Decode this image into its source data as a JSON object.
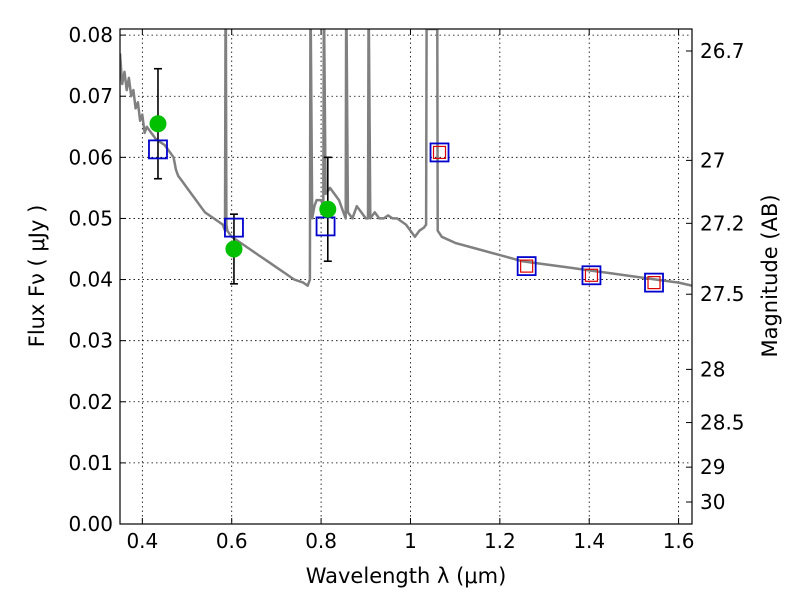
{
  "chart_data": {
    "type": "scatter",
    "title": "",
    "xlabel": "Wavelength  λ (μm)",
    "ylabel": "Flux  Fν  ( μJy )",
    "y2label": "Magnitude (AB)",
    "xlim": [
      0.35,
      1.63
    ],
    "ylim": [
      0.0,
      0.081
    ],
    "grid": true,
    "legend": "none",
    "colors": {
      "model": "#808080",
      "observed": "#00c000",
      "errorbar": "#000000",
      "model_photometry": "#0000cc",
      "model_photometry_inner": "#dd0000"
    },
    "x_ticks": [
      0.4,
      0.6,
      0.8,
      1.0,
      1.2,
      1.4,
      1.6
    ],
    "x_tick_labels": [
      "0.4",
      "0.6",
      "0.8",
      "1",
      "1.2",
      "1.4",
      "1.6"
    ],
    "y_ticks": [
      0.0,
      0.01,
      0.02,
      0.03,
      0.04,
      0.05,
      0.06,
      0.07,
      0.08
    ],
    "y_tick_labels": [
      "0.00",
      "0.01",
      "0.02",
      "0.03",
      "0.04",
      "0.05",
      "0.06",
      "0.07",
      "0.08"
    ],
    "y2_ticks": [
      {
        "label": "26.7",
        "flux": 0.0774
      },
      {
        "label": "27",
        "flux": 0.0595
      },
      {
        "label": "27.2",
        "flux": 0.0492
      },
      {
        "label": "27.5",
        "flux": 0.0376
      },
      {
        "label": "28",
        "flux": 0.0253
      },
      {
        "label": "28.5",
        "flux": 0.0166
      },
      {
        "label": "29",
        "flux": 0.0093
      },
      {
        "label": "30",
        "flux": 0.0036
      }
    ],
    "series": [
      {
        "kind": "line",
        "x": [
          0.35,
          0.355,
          0.36,
          0.365,
          0.37,
          0.375,
          0.38,
          0.385,
          0.39,
          0.395,
          0.4,
          0.405,
          0.41,
          0.42,
          0.43,
          0.44,
          0.45,
          0.46,
          0.47,
          0.475,
          0.48,
          0.49,
          0.5,
          0.51,
          0.52,
          0.53,
          0.54,
          0.55,
          0.56,
          0.57,
          0.58,
          0.585,
          0.586,
          0.587,
          0.588,
          0.59,
          0.6,
          0.62,
          0.64,
          0.66,
          0.68,
          0.7,
          0.72,
          0.74,
          0.76,
          0.77,
          0.775,
          0.776,
          0.777,
          0.78,
          0.785,
          0.79,
          0.8,
          0.805,
          0.806,
          0.807,
          0.81,
          0.82,
          0.83,
          0.84,
          0.845,
          0.85,
          0.855,
          0.856,
          0.857,
          0.86,
          0.87,
          0.88,
          0.89,
          0.9,
          0.905,
          0.906,
          0.907,
          0.91,
          0.92,
          0.93,
          0.94,
          0.95,
          0.96,
          0.97,
          0.98,
          0.99,
          1.0,
          1.01,
          1.02,
          1.03,
          1.035,
          1.036,
          1.06,
          1.061,
          1.07,
          1.1,
          1.15,
          1.2,
          1.25,
          1.3,
          1.35,
          1.4,
          1.45,
          1.5,
          1.55,
          1.6,
          1.63
        ],
        "y": [
          0.077,
          0.072,
          0.074,
          0.071,
          0.073,
          0.07,
          0.071,
          0.068,
          0.069,
          0.066,
          0.067,
          0.064,
          0.065,
          0.064,
          0.063,
          0.0625,
          0.062,
          0.061,
          0.06,
          0.058,
          0.057,
          0.056,
          0.055,
          0.054,
          0.053,
          0.052,
          0.051,
          0.0505,
          0.05,
          0.0495,
          0.049,
          0.048,
          0.081,
          0.081,
          0.049,
          0.048,
          0.047,
          0.046,
          0.045,
          0.044,
          0.043,
          0.042,
          0.041,
          0.04,
          0.0395,
          0.039,
          0.04,
          0.081,
          0.081,
          0.05,
          0.052,
          0.053,
          0.053,
          0.052,
          0.081,
          0.081,
          0.054,
          0.055,
          0.054,
          0.053,
          0.052,
          0.051,
          0.05,
          0.081,
          0.081,
          0.051,
          0.05,
          0.052,
          0.051,
          0.05,
          0.05,
          0.081,
          0.081,
          0.05,
          0.051,
          0.05,
          0.05,
          0.0505,
          0.05,
          0.05,
          0.0495,
          0.049,
          0.048,
          0.047,
          0.048,
          0.0485,
          0.049,
          0.081,
          0.081,
          0.048,
          0.047,
          0.046,
          0.045,
          0.044,
          0.043,
          0.0425,
          0.042,
          0.0415,
          0.041,
          0.0405,
          0.04,
          0.0395,
          0.039
        ]
      },
      {
        "kind": "points_with_errors",
        "x": [
          0.435,
          0.605,
          0.815
        ],
        "y": [
          0.0655,
          0.045,
          0.0515
        ],
        "yerr": [
          0.009,
          0.0057,
          0.0085
        ]
      },
      {
        "kind": "model_photometry",
        "x": [
          0.435,
          0.605,
          0.81,
          1.065,
          1.26,
          1.405,
          1.545
        ],
        "y": [
          0.0613,
          0.0485,
          0.0487,
          0.0608,
          0.0422,
          0.0407,
          0.0395
        ],
        "inner": [
          false,
          false,
          false,
          true,
          true,
          true,
          true
        ]
      }
    ]
  }
}
